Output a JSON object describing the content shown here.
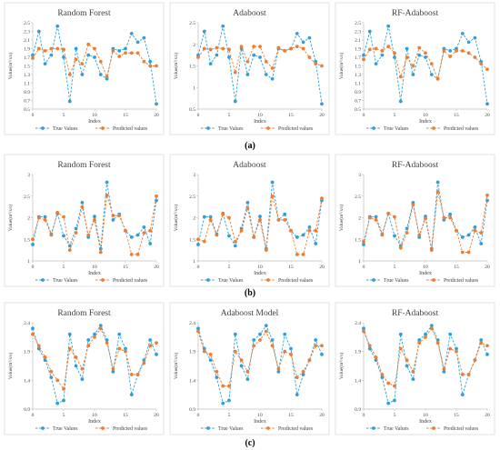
{
  "figure": {
    "legend_true": "True Values",
    "legend_pred": "Predicted values",
    "x_label": "Index",
    "y_label": "Value(m³/s/s)",
    "row_labels": [
      "(a)",
      "(b)",
      "(c)"
    ]
  },
  "colors": {
    "true_series": "#2e9fd8",
    "predicted_series": "#ee7d31",
    "panel_border": "#d9d9d9",
    "axis": "#bfbfbf",
    "text": "#404040"
  },
  "chart_data": [
    {
      "type": "line",
      "row": "(a)",
      "title": "Random Forest",
      "x": [
        0,
        1,
        2,
        3,
        4,
        5,
        6,
        7,
        8,
        9,
        10,
        11,
        12,
        13,
        14,
        15,
        16,
        17,
        18,
        19,
        20
      ],
      "ylim": [
        0.5,
        2.5
      ],
      "yticks": [
        0.5,
        0.7,
        0.9,
        1.1,
        1.3,
        1.5,
        1.7,
        1.9,
        2.1,
        2.3,
        2.5
      ],
      "xticks": [
        0,
        5,
        10,
        15,
        20
      ],
      "series": [
        {
          "name": "True Values",
          "values": [
            1.75,
            2.3,
            1.55,
            1.75,
            2.42,
            1.7,
            0.68,
            1.9,
            1.3,
            1.75,
            1.7,
            1.3,
            1.2,
            1.9,
            1.85,
            1.9,
            2.25,
            2.05,
            2.15,
            1.6,
            0.62
          ]
        },
        {
          "name": "Predicted values",
          "values": [
            1.68,
            1.9,
            1.85,
            1.9,
            1.9,
            1.88,
            1.3,
            1.65,
            1.55,
            2.0,
            1.9,
            1.6,
            1.25,
            1.85,
            1.72,
            1.8,
            1.8,
            1.8,
            1.6,
            1.5,
            1.5
          ]
        }
      ]
    },
    {
      "type": "line",
      "row": "(a)",
      "title": "Adaboost",
      "x": [
        0,
        1,
        2,
        3,
        4,
        5,
        6,
        7,
        8,
        9,
        10,
        11,
        12,
        13,
        14,
        15,
        16,
        17,
        18,
        19,
        20
      ],
      "ylim": [
        0.5,
        2.5
      ],
      "yticks": [
        0.5,
        1,
        1.5,
        2,
        2.5
      ],
      "xticks": [
        0,
        5,
        10,
        15,
        20
      ],
      "series": [
        {
          "name": "True Values",
          "values": [
            1.75,
            2.3,
            1.55,
            1.75,
            2.42,
            1.7,
            0.68,
            1.9,
            1.3,
            1.75,
            1.7,
            1.3,
            1.2,
            1.9,
            1.85,
            1.9,
            2.25,
            2.05,
            2.15,
            1.6,
            0.62
          ]
        },
        {
          "name": "Predicted values",
          "values": [
            1.7,
            1.9,
            1.88,
            1.92,
            1.9,
            1.88,
            1.35,
            1.95,
            1.6,
            1.95,
            1.95,
            1.6,
            1.45,
            1.92,
            1.85,
            1.9,
            1.95,
            1.9,
            1.7,
            1.55,
            1.5
          ]
        }
      ]
    },
    {
      "type": "line",
      "row": "(a)",
      "title": "RF-Adaboost",
      "x": [
        0,
        1,
        2,
        3,
        4,
        5,
        6,
        7,
        8,
        9,
        10,
        11,
        12,
        13,
        14,
        15,
        16,
        17,
        18,
        19,
        20
      ],
      "ylim": [
        0.5,
        2.5
      ],
      "yticks": [
        0.5,
        0.7,
        0.9,
        1.1,
        1.3,
        1.5,
        1.7,
        1.9,
        2.1,
        2.3,
        2.5
      ],
      "xticks": [
        0,
        5,
        10,
        15,
        20
      ],
      "series": [
        {
          "name": "True Values",
          "values": [
            1.75,
            2.3,
            1.55,
            1.75,
            2.42,
            1.7,
            0.68,
            1.9,
            1.3,
            1.75,
            1.7,
            1.3,
            1.2,
            1.9,
            1.85,
            1.9,
            2.25,
            2.05,
            2.15,
            1.6,
            0.62
          ]
        },
        {
          "name": "Predicted values",
          "values": [
            1.65,
            1.88,
            1.9,
            1.85,
            1.95,
            1.8,
            1.25,
            1.7,
            1.5,
            1.92,
            1.8,
            1.55,
            1.2,
            1.85,
            1.72,
            1.85,
            1.85,
            1.8,
            1.7,
            1.55,
            1.42
          ]
        }
      ]
    },
    {
      "type": "line",
      "row": "(b)",
      "title": "Random Forest",
      "x": [
        0,
        1,
        2,
        3,
        4,
        5,
        6,
        7,
        8,
        9,
        10,
        11,
        12,
        13,
        14,
        15,
        16,
        17,
        18,
        19,
        20
      ],
      "ylim": [
        1,
        3
      ],
      "yticks": [
        1,
        1.5,
        2,
        2.5,
        3
      ],
      "xticks": [
        0,
        5,
        10,
        15,
        20
      ],
      "series": [
        {
          "name": "True Values",
          "values": [
            1.38,
            2.02,
            2.02,
            1.62,
            2.1,
            1.58,
            1.35,
            1.75,
            2.35,
            1.55,
            2.03,
            1.28,
            2.82,
            1.95,
            2.08,
            1.7,
            1.55,
            1.6,
            1.78,
            1.4,
            2.4
          ]
        },
        {
          "name": "Predicted values",
          "values": [
            1.5,
            2.0,
            1.95,
            1.6,
            2.12,
            2.02,
            1.25,
            1.65,
            2.25,
            1.6,
            1.95,
            1.2,
            2.52,
            2.05,
            2.05,
            1.7,
            1.15,
            1.15,
            1.65,
            1.7,
            2.5
          ]
        }
      ]
    },
    {
      "type": "line",
      "row": "(b)",
      "title": "Adaboost",
      "x": [
        0,
        1,
        2,
        3,
        4,
        5,
        6,
        7,
        8,
        9,
        10,
        11,
        12,
        13,
        14,
        15,
        16,
        17,
        18,
        19,
        20
      ],
      "ylim": [
        1,
        3
      ],
      "yticks": [
        1,
        1.5,
        2,
        2.5,
        3
      ],
      "xticks": [
        0,
        5,
        10,
        15,
        20
      ],
      "series": [
        {
          "name": "True Values",
          "values": [
            1.38,
            2.02,
            2.02,
            1.62,
            2.1,
            1.58,
            1.35,
            1.75,
            2.35,
            1.55,
            2.03,
            1.28,
            2.82,
            1.95,
            2.08,
            1.7,
            1.55,
            1.6,
            1.78,
            1.4,
            2.4
          ]
        },
        {
          "name": "Predicted values",
          "values": [
            1.5,
            1.45,
            1.95,
            1.6,
            2.08,
            2.0,
            1.45,
            1.7,
            2.22,
            1.55,
            1.95,
            1.25,
            2.5,
            1.95,
            1.95,
            1.7,
            1.15,
            1.15,
            1.7,
            1.7,
            2.45
          ]
        }
      ]
    },
    {
      "type": "line",
      "row": "(b)",
      "title": "RF-Adaboost",
      "x": [
        0,
        1,
        2,
        3,
        4,
        5,
        6,
        7,
        8,
        9,
        10,
        11,
        12,
        13,
        14,
        15,
        16,
        17,
        18,
        19,
        20
      ],
      "ylim": [
        1,
        3
      ],
      "yticks": [
        1,
        1.5,
        2,
        2.5,
        3
      ],
      "xticks": [
        0,
        5,
        10,
        15,
        20
      ],
      "series": [
        {
          "name": "True Values",
          "values": [
            1.38,
            2.02,
            2.02,
            1.62,
            2.1,
            1.58,
            1.35,
            1.75,
            2.35,
            1.55,
            2.03,
            1.28,
            2.82,
            1.95,
            2.08,
            1.7,
            1.55,
            1.6,
            1.78,
            1.4,
            2.4
          ]
        },
        {
          "name": "Predicted values",
          "values": [
            1.45,
            2.0,
            1.95,
            1.6,
            2.1,
            2.02,
            1.3,
            1.65,
            2.3,
            1.6,
            1.98,
            1.25,
            2.6,
            2.0,
            2.0,
            1.7,
            1.2,
            1.2,
            1.7,
            1.65,
            2.52
          ]
        }
      ]
    },
    {
      "type": "line",
      "row": "(c)",
      "title": "Random Forest",
      "x": [
        0,
        1,
        2,
        3,
        4,
        5,
        6,
        7,
        8,
        9,
        10,
        11,
        12,
        13,
        14,
        15,
        16,
        17,
        18,
        19,
        20
      ],
      "ylim": [
        0.9,
        2.4
      ],
      "yticks": [
        0.9,
        1.4,
        1.9,
        2.4
      ],
      "xticks": [
        0,
        5,
        10,
        15,
        20
      ],
      "series": [
        {
          "name": "True Values",
          "values": [
            2.3,
            1.95,
            1.75,
            1.45,
            1.0,
            1.05,
            2.2,
            1.65,
            1.42,
            2.1,
            2.2,
            2.35,
            2.1,
            1.55,
            2.2,
            1.95,
            1.15,
            1.5,
            1.75,
            2.1,
            1.85
          ]
        },
        {
          "name": "Predicted values",
          "values": [
            2.2,
            2.0,
            1.8,
            1.55,
            1.4,
            1.25,
            1.95,
            1.8,
            1.6,
            2.0,
            2.15,
            2.3,
            2.05,
            1.6,
            1.95,
            1.9,
            1.5,
            1.5,
            1.7,
            2.0,
            2.05
          ]
        }
      ]
    },
    {
      "type": "line",
      "row": "(c)",
      "title": "Adaboost Model",
      "x": [
        0,
        1,
        2,
        3,
        4,
        5,
        6,
        7,
        8,
        9,
        10,
        11,
        12,
        13,
        14,
        15,
        16,
        17,
        18,
        19,
        20
      ],
      "ylim": [
        0.9,
        2.4
      ],
      "yticks": [
        0.9,
        1.4,
        1.9,
        2.4
      ],
      "xticks": [
        0,
        5,
        10,
        15,
        20
      ],
      "series": [
        {
          "name": "True Values",
          "values": [
            2.3,
            1.95,
            1.75,
            1.45,
            1.0,
            1.05,
            2.2,
            1.65,
            1.42,
            2.1,
            2.2,
            2.35,
            2.1,
            1.55,
            2.2,
            1.95,
            1.15,
            1.5,
            1.75,
            2.1,
            1.85
          ]
        },
        {
          "name": "Predicted values",
          "values": [
            2.25,
            1.9,
            1.85,
            1.55,
            1.3,
            1.3,
            1.9,
            1.75,
            1.55,
            2.0,
            2.1,
            2.25,
            2.0,
            1.6,
            1.9,
            1.85,
            1.45,
            1.55,
            1.75,
            2.0,
            2.0
          ]
        }
      ]
    },
    {
      "type": "line",
      "row": "(c)",
      "title": "RF-Adaboost",
      "x": [
        0,
        1,
        2,
        3,
        4,
        5,
        6,
        7,
        8,
        9,
        10,
        11,
        12,
        13,
        14,
        15,
        16,
        17,
        18,
        19,
        20
      ],
      "ylim": [
        0.9,
        2.4
      ],
      "yticks": [
        0.9,
        1.4,
        1.9,
        2.4
      ],
      "xticks": [
        0,
        5,
        10,
        15,
        20
      ],
      "series": [
        {
          "name": "True Values",
          "values": [
            2.3,
            1.95,
            1.75,
            1.45,
            1.0,
            1.05,
            2.2,
            1.65,
            1.42,
            2.1,
            2.2,
            2.35,
            2.1,
            1.55,
            2.2,
            1.95,
            1.15,
            1.5,
            1.75,
            2.1,
            1.85
          ]
        },
        {
          "name": "Predicted values",
          "values": [
            2.25,
            2.0,
            1.8,
            1.5,
            1.35,
            1.3,
            1.95,
            1.75,
            1.55,
            2.05,
            2.15,
            2.3,
            2.05,
            1.6,
            1.95,
            1.9,
            1.5,
            1.5,
            1.75,
            2.05,
            2.0
          ]
        }
      ]
    }
  ]
}
